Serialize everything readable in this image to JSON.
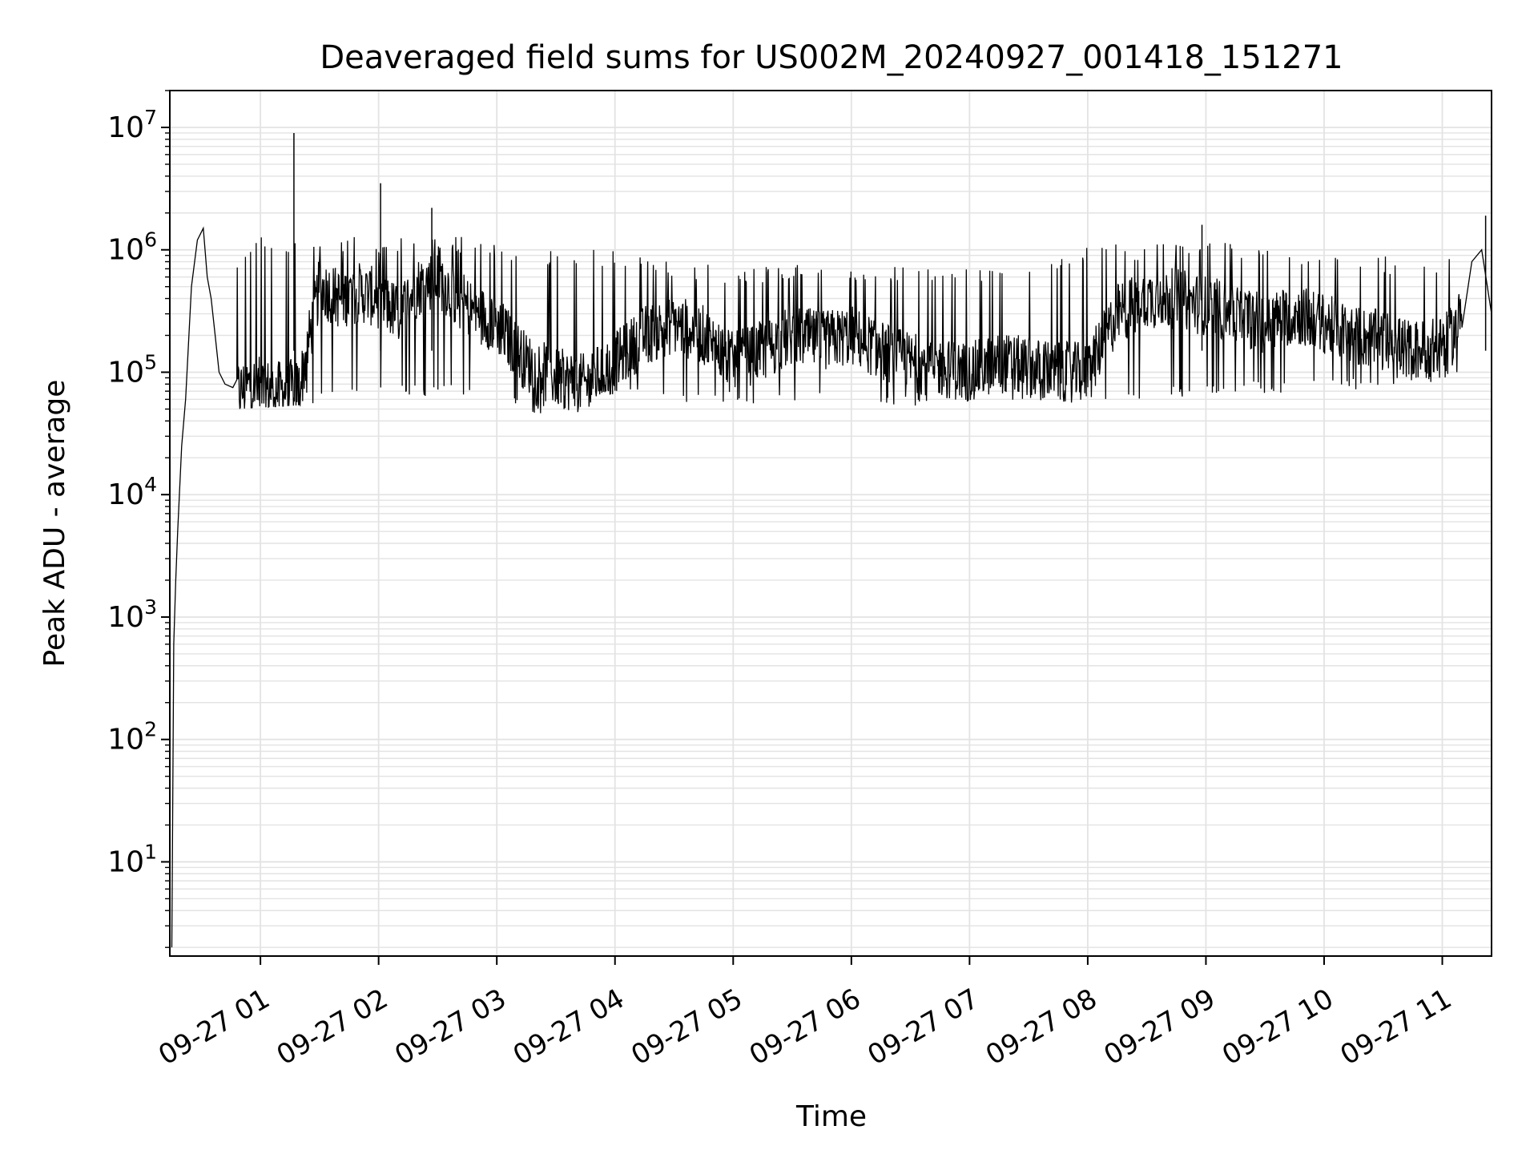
{
  "chart_data": {
    "type": "line",
    "title": "Deaveraged field sums for US002M_20240927_001418_151271",
    "xlabel": "Time",
    "ylabel": "Peak ADU - average",
    "y_scale": "log",
    "grid": true,
    "line_color": "#000000",
    "grid_color": "#e3e3e3",
    "xlim": [
      "2024-09-27 00:14",
      "2024-09-27 11:25"
    ],
    "ylim": [
      1.7,
      20000000
    ],
    "x_ticks": [
      {
        "value": "2024-09-27 01:00",
        "label": "09-27 01"
      },
      {
        "value": "2024-09-27 02:00",
        "label": "09-27 02"
      },
      {
        "value": "2024-09-27 03:00",
        "label": "09-27 03"
      },
      {
        "value": "2024-09-27 04:00",
        "label": "09-27 04"
      },
      {
        "value": "2024-09-27 05:00",
        "label": "09-27 05"
      },
      {
        "value": "2024-09-27 06:00",
        "label": "09-27 06"
      },
      {
        "value": "2024-09-27 07:00",
        "label": "09-27 07"
      },
      {
        "value": "2024-09-27 08:00",
        "label": "09-27 08"
      },
      {
        "value": "2024-09-27 09:00",
        "label": "09-27 09"
      },
      {
        "value": "2024-09-27 10:00",
        "label": "09-27 10"
      },
      {
        "value": "2024-09-27 11:00",
        "label": "09-27 11"
      }
    ],
    "y_ticks": [
      {
        "value": 10,
        "base": "10",
        "exp": "1"
      },
      {
        "value": 100,
        "base": "10",
        "exp": "2"
      },
      {
        "value": 1000,
        "base": "10",
        "exp": "3"
      },
      {
        "value": 10000,
        "base": "10",
        "exp": "4"
      },
      {
        "value": 100000,
        "base": "10",
        "exp": "5"
      },
      {
        "value": 1000000,
        "base": "10",
        "exp": "6"
      },
      {
        "value": 10000000,
        "base": "10",
        "exp": "7"
      }
    ],
    "series": [
      {
        "x": [
          "2024-09-27 00:15",
          "2024-09-27 00:16",
          "2024-09-27 00:17",
          "2024-09-27 00:18",
          "2024-09-27 00:20",
          "2024-09-27 00:22",
          "2024-09-27 00:25",
          "2024-09-27 00:28",
          "2024-09-27 00:31",
          "2024-09-27 00:33",
          "2024-09-27 00:35",
          "2024-09-27 00:37",
          "2024-09-27 00:39",
          "2024-09-27 00:42",
          "2024-09-27 00:46",
          "2024-09-27 00:50",
          "2024-09-27 00:55",
          "2024-09-27 01:00",
          "2024-09-27 01:10",
          "2024-09-27 01:20",
          "2024-09-27 01:30",
          "2024-09-27 01:40",
          "2024-09-27 01:50",
          "2024-09-27 02:00",
          "2024-09-27 02:10",
          "2024-09-27 02:20",
          "2024-09-27 02:30",
          "2024-09-27 02:40",
          "2024-09-27 02:50",
          "2024-09-27 03:00",
          "2024-09-27 03:15",
          "2024-09-27 03:30",
          "2024-09-27 03:45",
          "2024-09-27 04:00",
          "2024-09-27 04:15",
          "2024-09-27 04:30",
          "2024-09-27 04:45",
          "2024-09-27 05:00",
          "2024-09-27 05:15",
          "2024-09-27 05:30",
          "2024-09-27 05:45",
          "2024-09-27 06:00",
          "2024-09-27 06:15",
          "2024-09-27 06:30",
          "2024-09-27 06:45",
          "2024-09-27 07:00",
          "2024-09-27 07:15",
          "2024-09-27 07:30",
          "2024-09-27 07:45",
          "2024-09-27 08:00",
          "2024-09-27 08:15",
          "2024-09-27 08:30",
          "2024-09-27 08:45",
          "2024-09-27 09:00",
          "2024-09-27 09:15",
          "2024-09-27 09:30",
          "2024-09-27 09:45",
          "2024-09-27 10:00",
          "2024-09-27 10:15",
          "2024-09-27 10:30",
          "2024-09-27 10:45",
          "2024-09-27 11:00",
          "2024-09-27 11:05",
          "2024-09-27 11:10",
          "2024-09-27 11:15",
          "2024-09-27 11:20",
          "2024-09-27 11:25"
        ],
        "y": [
          2,
          600,
          2000,
          5000,
          25000,
          60000,
          500000,
          1200000,
          1500000,
          600000,
          400000,
          200000,
          100000,
          80000,
          75000,
          70000,
          80000,
          75000,
          70000,
          75000,
          500000,
          400000,
          450000,
          400000,
          300000,
          500000,
          600000,
          400000,
          300000,
          250000,
          120000,
          90000,
          80000,
          120000,
          200000,
          250000,
          200000,
          120000,
          150000,
          200000,
          180000,
          200000,
          150000,
          120000,
          110000,
          100000,
          120000,
          110000,
          100000,
          100000,
          300000,
          400000,
          400000,
          350000,
          300000,
          250000,
          300000,
          250000,
          200000,
          180000,
          150000,
          160000,
          200000,
          300000,
          800000,
          1000000,
          300000
        ]
      }
    ],
    "spikes": [
      {
        "x": "2024-09-27 01:17",
        "y": 9000000
      },
      {
        "x": "2024-09-27 02:01",
        "y": 3500000
      },
      {
        "x": "2024-09-27 02:27",
        "y": 2200000
      },
      {
        "x": "2024-09-27 08:58",
        "y": 1600000
      },
      {
        "x": "2024-09-27 11:22",
        "y": 1900000
      }
    ],
    "envelope_low": {
      "x": [
        "2024-09-27 00:48",
        "2024-09-27 01:30",
        "2024-09-27 02:00",
        "2024-09-27 02:30",
        "2024-09-27 03:00",
        "2024-09-27 03:30",
        "2024-09-27 04:00",
        "2024-09-27 05:00",
        "2024-09-27 06:00",
        "2024-09-27 07:00",
        "2024-09-27 08:00",
        "2024-09-27 09:00",
        "2024-09-27 10:00",
        "2024-09-27 11:00",
        "2024-09-27 11:10"
      ],
      "y": [
        50000,
        55000,
        60000,
        65000,
        60000,
        40000,
        60000,
        55000,
        55000,
        50000,
        55000,
        65000,
        70000,
        80000,
        90000
      ]
    },
    "envelope_high": {
      "x": [
        "2024-09-27 00:48",
        "2024-09-27 01:00",
        "2024-09-27 01:30",
        "2024-09-27 02:00",
        "2024-09-27 02:30",
        "2024-09-27 03:00",
        "2024-09-27 03:30",
        "2024-09-27 04:00",
        "2024-09-27 05:00",
        "2024-09-27 06:00",
        "2024-09-27 07:00",
        "2024-09-27 08:00",
        "2024-09-27 09:00",
        "2024-09-27 10:00",
        "2024-09-27 11:00",
        "2024-09-27 11:10"
      ],
      "y": [
        900000,
        1300000,
        1400000,
        1300000,
        1400000,
        1200000,
        1000000,
        1000000,
        700000,
        800000,
        700000,
        1100000,
        1200000,
        1000000,
        800000,
        1000000
      ]
    }
  }
}
